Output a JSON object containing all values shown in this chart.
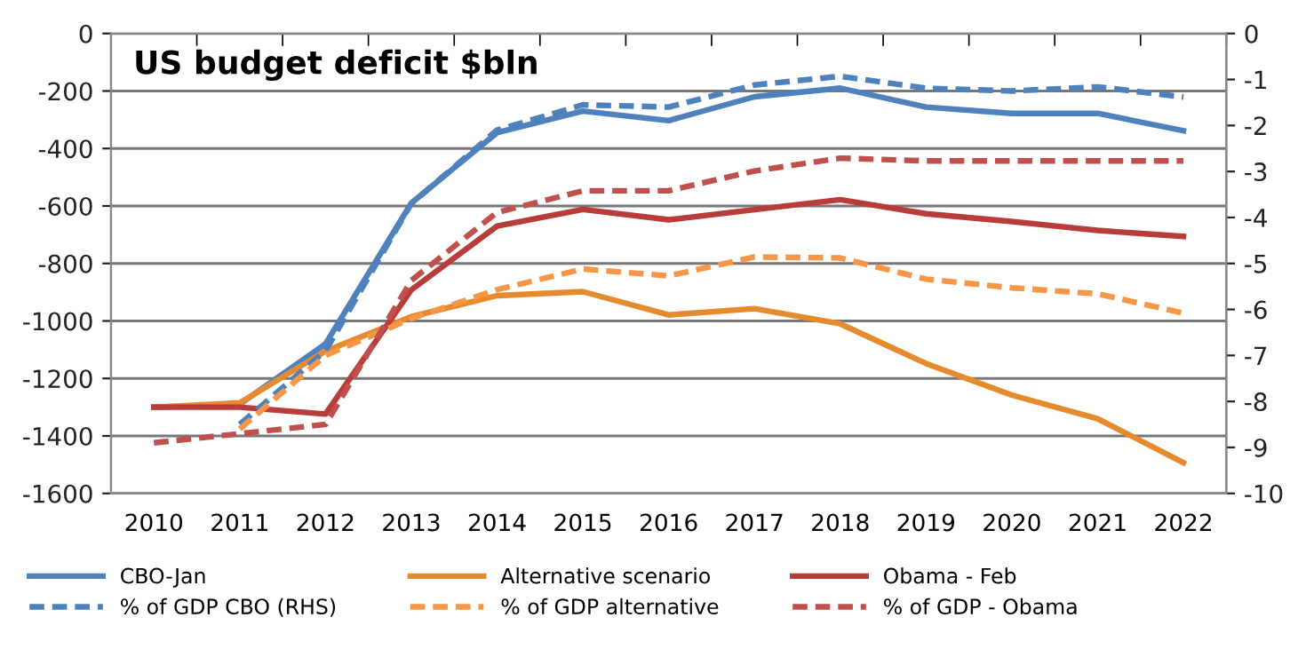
{
  "chart_data": {
    "type": "line",
    "title": "US budget deficit $bln",
    "categories": [
      "2010",
      "2011",
      "2012",
      "2013",
      "2014",
      "2015",
      "2016",
      "2017",
      "2018",
      "2019",
      "2020",
      "2021",
      "2022"
    ],
    "series": [
      {
        "name": "CBO-Jan",
        "color": "#4f81bd",
        "line_style": "solid",
        "values": [
          -1300,
          -1290,
          -1080,
          -590,
          -345,
          -270,
          -303,
          -220,
          -190,
          -256,
          -278,
          -278,
          -338
        ]
      },
      {
        "name": "Alternative scenario",
        "color": "#e68a2e",
        "line_style": "solid",
        "values": [
          -1300,
          -1285,
          -1105,
          -985,
          -912,
          -898,
          -979,
          -957,
          -1010,
          -1148,
          -1258,
          -1340,
          -1493
        ]
      },
      {
        "name": "Obama - Feb",
        "color": "#b83c3a",
        "line_style": "solid",
        "values": [
          -1300,
          -1300,
          -1324,
          -892,
          -670,
          -612,
          -648,
          -613,
          -578,
          -627,
          -654,
          -685,
          -706
        ]
      },
      {
        "name": "% of GDP CBO (RHS)",
        "color": "#4f81bd",
        "line_style": "dashed",
        "axis": "y2",
        "values": [
          null,
          -8.5,
          -6.9,
          -3.7,
          -2.1,
          -1.55,
          -1.6,
          -1.12,
          -0.93,
          -1.19,
          -1.25,
          -1.16,
          -1.38
        ]
      },
      {
        "name": "% of GDP alternative",
        "color": "#f79646",
        "line_style": "dashed",
        "axis": "y2",
        "values": [
          null,
          -8.6,
          -7.0,
          -6.2,
          -5.57,
          -5.12,
          -5.27,
          -4.86,
          -4.88,
          -5.34,
          -5.53,
          -5.66,
          -6.08
        ]
      },
      {
        "name": "% of GDP - Obama",
        "color": "#c0504d",
        "line_style": "dashed",
        "axis": "y2",
        "values": [
          -8.9,
          -8.7,
          -8.5,
          -5.37,
          -3.89,
          -3.42,
          -3.42,
          -2.99,
          -2.71,
          -2.77,
          -2.77,
          -2.77,
          -2.77
        ]
      }
    ],
    "ylim": [
      -1600,
      0
    ],
    "yticks": [
      -1600,
      -1400,
      -1200,
      -1000,
      -800,
      -600,
      -400,
      -200,
      0
    ],
    "y2lim": [
      -10,
      0
    ],
    "y2ticks": [
      -10,
      -9,
      -8,
      -7,
      -6,
      -5,
      -4,
      -3,
      -2,
      -1,
      0
    ],
    "grid": "y",
    "legend": "bottom",
    "marker": "none"
  }
}
